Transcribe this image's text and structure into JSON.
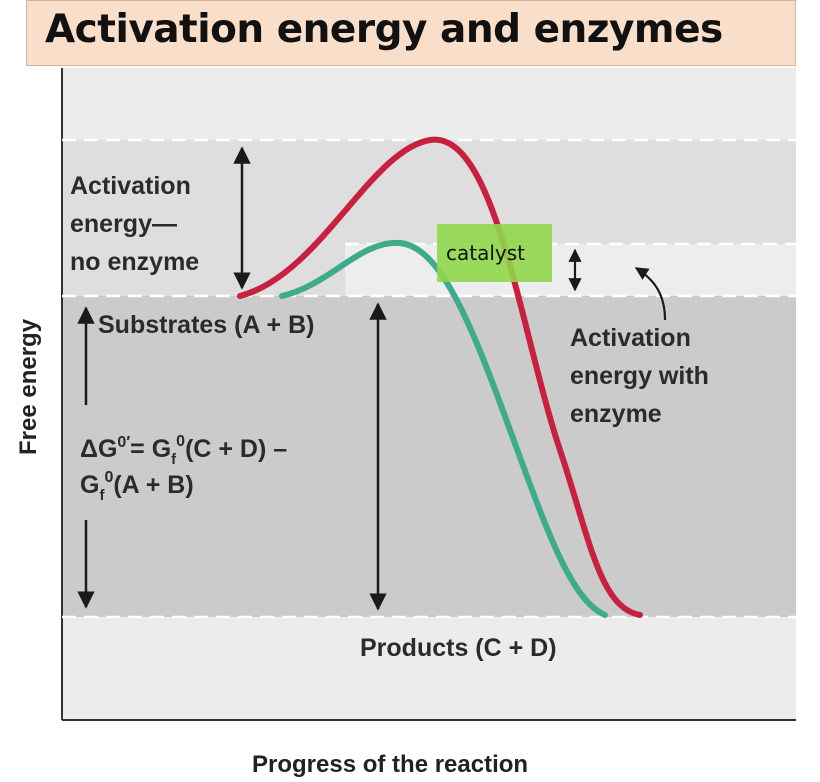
{
  "title": "Activation energy and enzymes",
  "labels": {
    "activation_no_enzyme": [
      "Activation",
      "energy—",
      "no enzyme"
    ],
    "substrates": "Substrates (A + B)",
    "delta_g_line1": "ΔG0′= Gf0(C + D) –",
    "delta_g_line2": "Gf0(A + B)",
    "catalyst": "catalyst",
    "activation_with_enzyme": [
      "Activation",
      "energy with",
      "enzyme"
    ],
    "products": "Products (C + D)",
    "y_axis": "Free energy",
    "x_axis": "Progress of the reaction"
  },
  "delta_g_parts": {
    "delta": "ΔG",
    "sup0prime": "0′",
    "eq": "= G",
    "sub_f": "f",
    "sup0": "0",
    "cd": "(C + D) –",
    "g2": "G",
    "ab": "(A + B)"
  },
  "colors": {
    "no_enzyme_curve": "#c8203f",
    "enzyme_curve": "#3dab8c",
    "catalyst_highlight": "#8fd64a",
    "title_bg": "#f9dfc9"
  }
}
